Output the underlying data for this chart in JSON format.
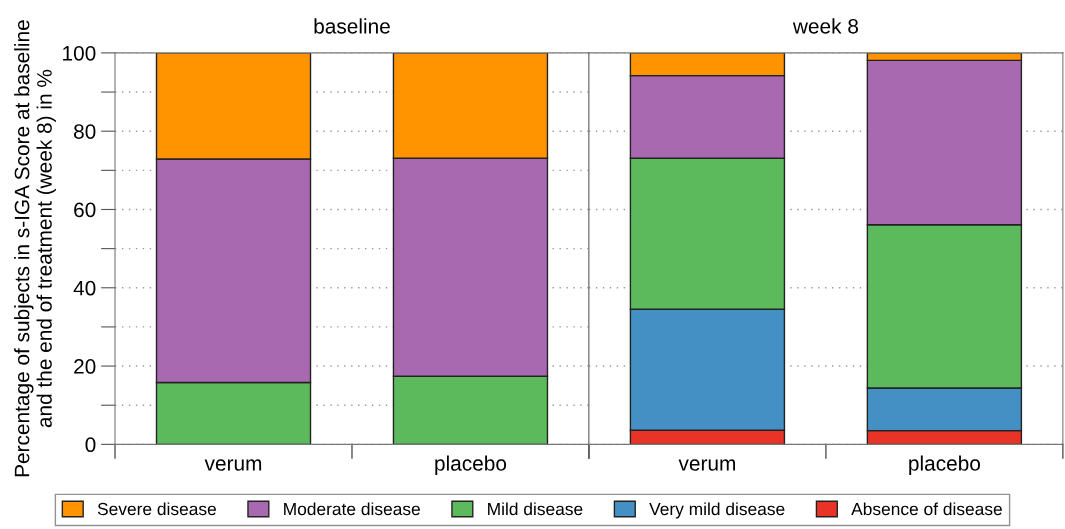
{
  "chart_data": [
    {
      "type": "bar",
      "title": "baseline",
      "ylabel": "Percentage of subjects in s-IGA Score at baseline and the end of treatment (week 8) in %",
      "categories": [
        "verum",
        "placebo"
      ],
      "stacked": true,
      "ylim": [
        0,
        100
      ],
      "yticks": [
        0,
        {
          "value": 10,
          "label": null
        },
        20,
        {
          "value": 30,
          "label": null
        },
        40,
        {
          "value": 50,
          "label": null
        },
        60,
        {
          "value": 70,
          "label": null
        },
        80,
        {
          "value": 90,
          "label": null
        },
        100
      ],
      "grid": "y",
      "legend": "bottom",
      "series": [
        {
          "name": "Absence of disease",
          "color": "#ea3327",
          "values": [
            0,
            0
          ]
        },
        {
          "name": "Very mild disease",
          "color": "#4490c4",
          "values": [
            0,
            0
          ]
        },
        {
          "name": "Mild disease",
          "color": "#5cba5d",
          "values": [
            15.8,
            17.4
          ]
        },
        {
          "name": "Moderate disease",
          "color": "#a869b0",
          "values": [
            57.1,
            55.7
          ]
        },
        {
          "name": "Severe disease",
          "color": "#ff9400",
          "values": [
            27.1,
            26.9
          ]
        }
      ]
    },
    {
      "type": "bar",
      "title": "week 8",
      "categories": [
        "verum",
        "placebo"
      ],
      "stacked": true,
      "ylim": [
        0,
        100
      ],
      "yticks": [
        0,
        20,
        40,
        60,
        80,
        100
      ],
      "tick_labels": "x",
      "grid": "y",
      "series": [
        {
          "color": "#ea3327",
          "values": [
            3.6,
            3.5
          ]
        },
        {
          "color": "#4490c4",
          "values": [
            30.9,
            10.9
          ]
        },
        {
          "color": "#5cba5d",
          "values": [
            38.6,
            41.7
          ]
        },
        {
          "color": "#a869b0",
          "values": [
            21.1,
            42.0
          ]
        },
        {
          "color": "#ff9400",
          "values": [
            5.8,
            1.9
          ]
        }
      ]
    }
  ]
}
